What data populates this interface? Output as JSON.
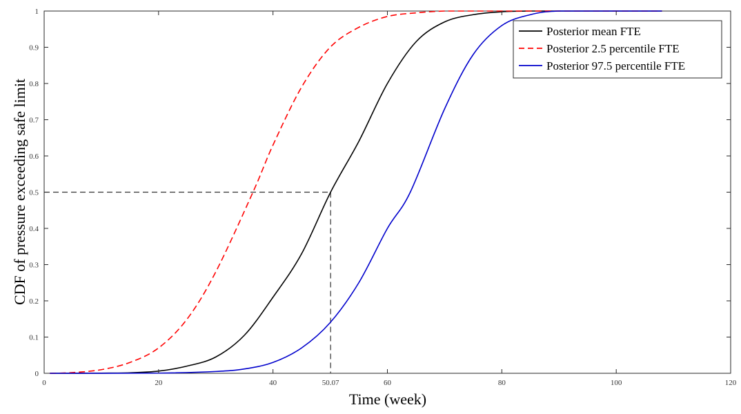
{
  "chart_data": {
    "type": "line",
    "xlabel": "Time (week)",
    "ylabel": "CDF of pressure exceeding safe limit",
    "xlim": [
      0,
      120
    ],
    "ylim": [
      0,
      1
    ],
    "x_ticks": [
      0,
      20,
      40,
      60,
      80,
      100,
      120
    ],
    "y_ticks": [
      0,
      0.1,
      0.2,
      0.3,
      0.4,
      0.5,
      0.6,
      0.7,
      0.8,
      0.9,
      1
    ],
    "x_tick_labels": [
      "0",
      "20",
      "40",
      "60",
      "80",
      "100",
      "120"
    ],
    "y_tick_labels": [
      "0",
      "0.1",
      "0.2",
      "0.3",
      "0.4",
      "0.5",
      "0.6",
      "0.7",
      "0.8",
      "0.9",
      "1"
    ],
    "grid": false,
    "legend_position": "top-right",
    "series": [
      {
        "name": "Posterior mean FTE",
        "color": "#000000",
        "style": "solid",
        "x": [
          1,
          10,
          15,
          20,
          25,
          30,
          35,
          40,
          45,
          50.07,
          55,
          60,
          65,
          70,
          75,
          80,
          85,
          90,
          100,
          108
        ],
        "y": [
          0,
          0.0004,
          0.0014,
          0.006,
          0.02,
          0.045,
          0.105,
          0.21,
          0.33,
          0.5,
          0.64,
          0.8,
          0.915,
          0.97,
          0.99,
          0.998,
          1,
          1,
          1,
          1
        ]
      },
      {
        "name": "Posterior 2.5 percentile FTE",
        "color": "#ff0000",
        "style": "dashed",
        "x": [
          1,
          5,
          10,
          15,
          20,
          25,
          30,
          36.5,
          40,
          45,
          50,
          55,
          60,
          65,
          70,
          75,
          80,
          90,
          100,
          108
        ],
        "y": [
          0,
          0.002,
          0.01,
          0.03,
          0.07,
          0.15,
          0.28,
          0.5,
          0.63,
          0.79,
          0.9,
          0.955,
          0.985,
          0.995,
          1,
          1,
          1,
          1,
          1,
          1
        ]
      },
      {
        "name": "Posterior 97.5 percentile FTE",
        "color": "#0000cc",
        "style": "solid",
        "x": [
          1,
          20,
          30,
          35,
          40,
          45,
          50,
          55,
          60,
          64,
          70,
          75,
          80,
          85,
          90,
          100,
          108
        ],
        "y": [
          0,
          0.0005,
          0.005,
          0.012,
          0.03,
          0.07,
          0.14,
          0.25,
          0.4,
          0.5,
          0.73,
          0.88,
          0.96,
          0.99,
          1,
          1,
          1
        ]
      }
    ],
    "annotations": {
      "reference_y": 0.5,
      "reference_x": 50.07,
      "marker_label": "50.07",
      "line_color": "#333333",
      "line_style": "dashed"
    }
  }
}
